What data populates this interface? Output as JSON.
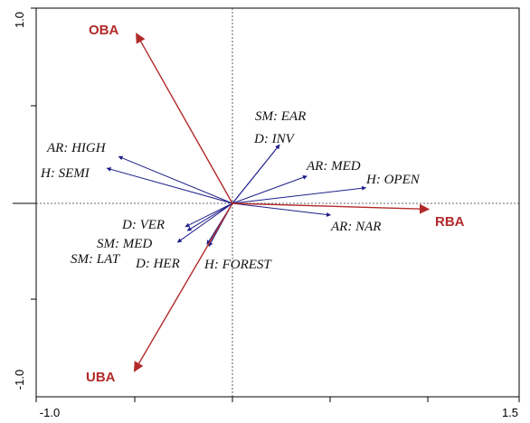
{
  "chart_data": {
    "type": "biplot",
    "xlim": [
      -1.0,
      1.5
    ],
    "ylim": [
      -1.0,
      1.0
    ],
    "x_tick_labels": [
      "-1.0",
      "1.5"
    ],
    "y_tick_labels": [
      "-1.0",
      "1.0"
    ],
    "zero_lines": "dotted",
    "colors": {
      "environmental": "#b22a2a",
      "species": "#1f1f8a"
    },
    "environmental_vectors": [
      {
        "label": "OBA",
        "x": -0.49,
        "y": 0.87
      },
      {
        "label": "RBA",
        "x": 1.0,
        "y": -0.03
      },
      {
        "label": "UBA",
        "x": -0.5,
        "y": -0.86
      }
    ],
    "species_vectors": [
      {
        "label": "SM: EAR",
        "x": 0.24,
        "y": 0.3
      },
      {
        "label": "D: INV",
        "x": 0.24,
        "y": 0.3
      },
      {
        "label": "AR: MED",
        "x": 0.38,
        "y": 0.14
      },
      {
        "label": "H: OPEN",
        "x": 0.68,
        "y": 0.08
      },
      {
        "label": "AR: NAR",
        "x": 0.5,
        "y": -0.06
      },
      {
        "label": "AR: HIGH",
        "x": -0.58,
        "y": 0.24
      },
      {
        "label": "H: SEMI",
        "x": -0.64,
        "y": 0.18
      },
      {
        "label": "D: VER",
        "x": -0.24,
        "y": -0.12
      },
      {
        "label": "SM: MED",
        "x": -0.28,
        "y": -0.2
      },
      {
        "label": "SM: LAT",
        "x": -0.23,
        "y": -0.14
      },
      {
        "label": "D: HER",
        "x": -0.12,
        "y": -0.22
      },
      {
        "label": "H: FOREST",
        "x": -0.13,
        "y": -0.21
      }
    ]
  }
}
